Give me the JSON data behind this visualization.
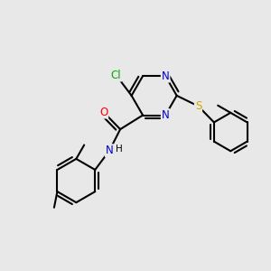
{
  "background_color": "#e8e8e8",
  "atom_colors": {
    "C": "#000000",
    "N": "#0000cc",
    "O": "#ff0000",
    "S": "#ccaa00",
    "Cl": "#00aa00",
    "H": "#000000"
  },
  "bond_color": "#000000",
  "bond_width": 1.5,
  "font_size": 8.5,
  "xlim": [
    0,
    10
  ],
  "ylim": [
    0,
    10
  ]
}
